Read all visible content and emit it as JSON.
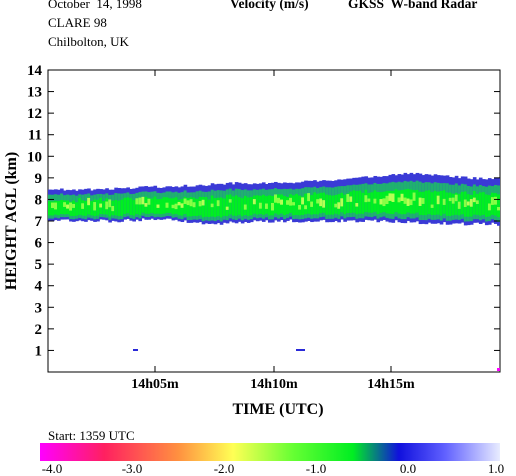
{
  "header": {
    "date": "October  14, 1998",
    "campaign": "CLARE 98",
    "location": "Chilbolton, UK",
    "title_variable": "Velocity (m/s)",
    "title_instrument": "GKSS  W-band Radar"
  },
  "footer": {
    "start_label": "Start: 1359 UTC"
  },
  "chart_data": {
    "type": "heatmap",
    "title": "Velocity (m/s)   GKSS  W-band Radar",
    "xlabel": "TIME (UTC)",
    "ylabel": "HEIGHT AGL (km)",
    "x_ticks": [
      "14h05m",
      "14h10m",
      "14h15m"
    ],
    "y_ticks": [
      "1",
      "2",
      "3",
      "4",
      "5",
      "6",
      "7",
      "8",
      "9",
      "10",
      "11",
      "12",
      "13",
      "14"
    ],
    "ylim": [
      0,
      14
    ],
    "colorbar": {
      "ticks": [
        "-4.0",
        "-3.0",
        "-2.0",
        "-1.0",
        "0.0",
        "1.0"
      ],
      "range": [
        -4.0,
        1.0
      ],
      "colors": [
        "#ff00ff",
        "#ff2060",
        "#ff9040",
        "#ffff55",
        "#00ff00",
        "#00dd30",
        "#1010dd",
        "#6060ff",
        "#e8ecff"
      ]
    },
    "cloud_layer": {
      "base_km": [
        7.0,
        7.0,
        7.0,
        7.05,
        7.05,
        6.9,
        6.9,
        7.0,
        7.0,
        7.0,
        7.0,
        7.0,
        6.95,
        6.9,
        6.85,
        6.85
      ],
      "top_km": [
        8.45,
        8.45,
        8.5,
        8.55,
        8.6,
        8.65,
        8.75,
        8.75,
        8.8,
        8.85,
        8.95,
        9.1,
        9.2,
        9.1,
        9.0,
        8.95
      ],
      "core_velocity_ms": -1.5,
      "edge_velocity_ms": 0.0
    }
  }
}
